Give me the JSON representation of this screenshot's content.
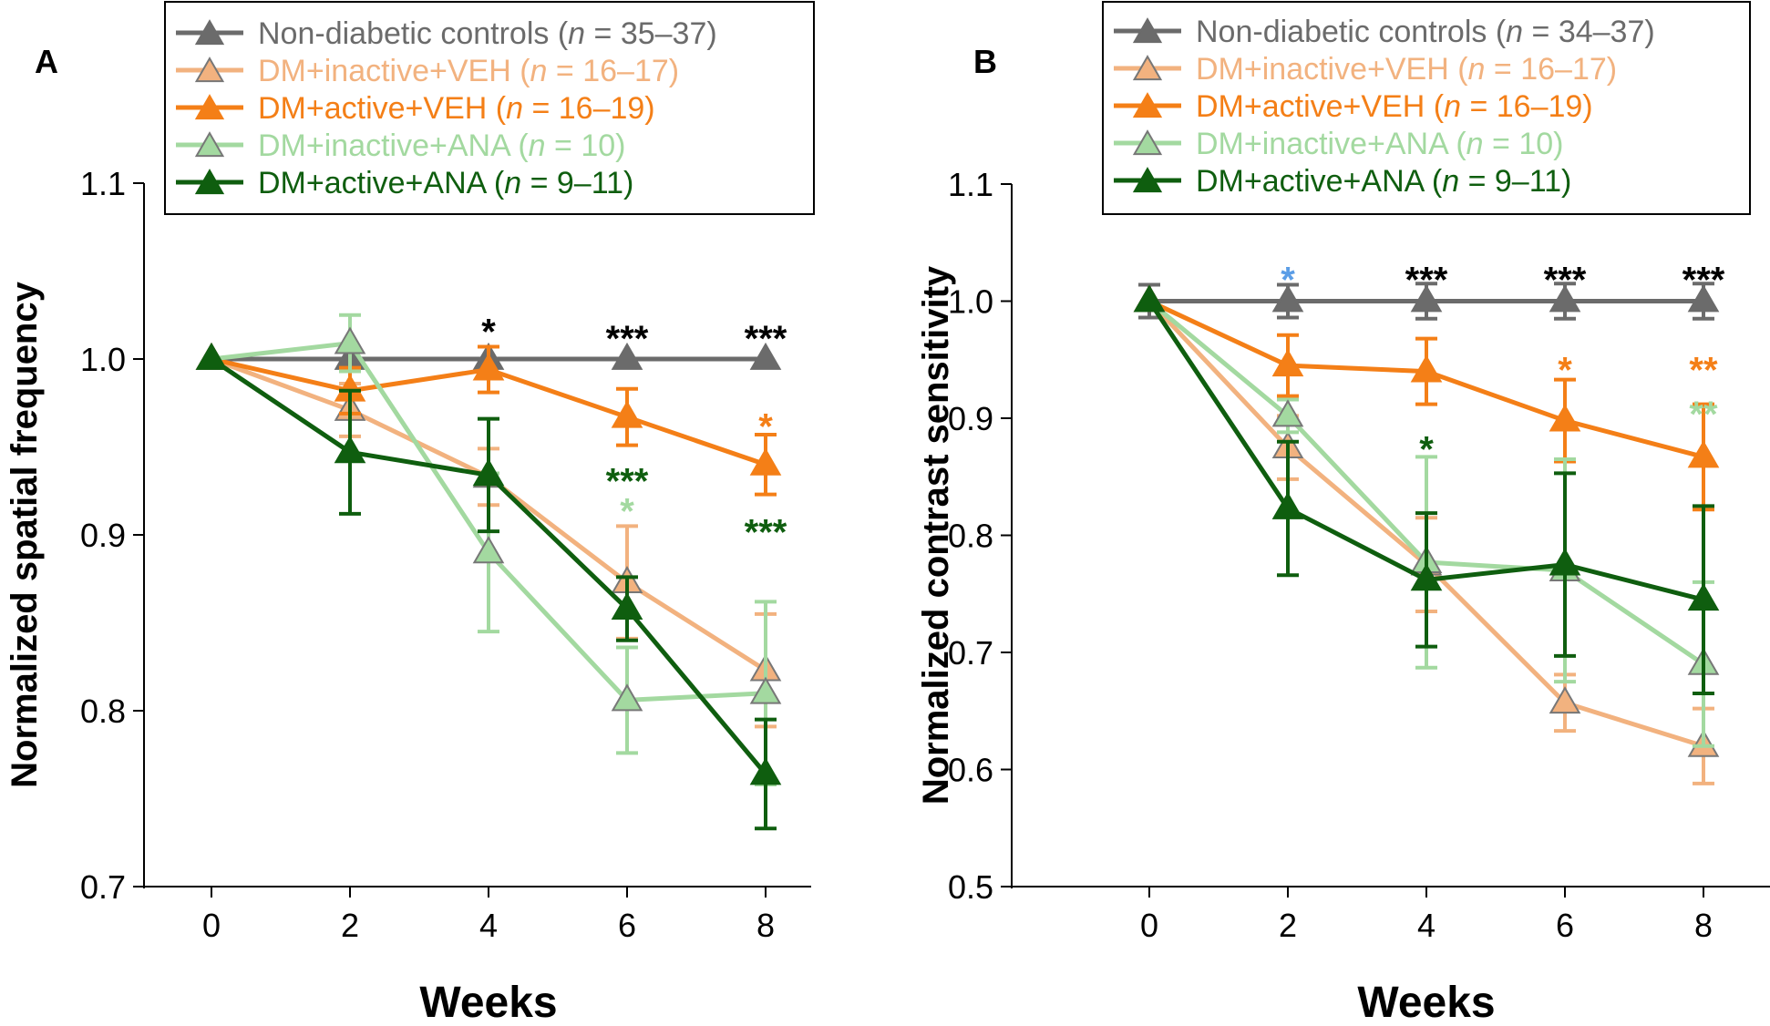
{
  "figure": {
    "series_styles": {
      "Non-diabetic controls": {
        "color": "#6b6b6b",
        "marker": "triangle"
      },
      "DM+inactive+VEH": {
        "color": "#f2b27f",
        "marker": "triangle-open"
      },
      "DM+active+VEH": {
        "color": "#f47f17",
        "marker": "triangle"
      },
      "DM+inactive+ANA": {
        "color": "#a3d9a0",
        "marker": "triangle-open"
      },
      "DM+active+ANA": {
        "color": "#0f5e0f",
        "marker": "triangle"
      }
    }
  },
  "chart_data": [
    {
      "panel": "A",
      "type": "line",
      "xlabel": "Weeks",
      "ylabel": "Normalized spatial  frequency",
      "x": [
        0,
        2,
        4,
        6,
        8
      ],
      "xticks": [
        "0",
        "2",
        "4",
        "6",
        "8"
      ],
      "yticks": [
        "0.7",
        "0.8",
        "0.9",
        "1.0",
        "1.1"
      ],
      "ylim": [
        0.7,
        1.1
      ],
      "legend_position": "top",
      "series": [
        {
          "name": "Non-diabetic controls",
          "n": "35–37",
          "color": "#6b6b6b",
          "values": [
            1.0,
            1.0,
            1.0,
            1.0,
            1.0
          ],
          "err": [
            0,
            0,
            0,
            0,
            0
          ]
        },
        {
          "name": "DM+inactive+VEH",
          "n": "16–17",
          "color": "#f2b27f",
          "values": [
            1.0,
            0.971,
            0.933,
            0.873,
            0.823
          ],
          "err": [
            0,
            0.015,
            0.016,
            0.032,
            0.032
          ]
        },
        {
          "name": "DM+active+VEH",
          "n": "16–19",
          "color": "#f47f17",
          "values": [
            1.0,
            0.982,
            0.994,
            0.967,
            0.94
          ],
          "err": [
            0,
            0.013,
            0.013,
            0.016,
            0.017
          ]
        },
        {
          "name": "DM+inactive+ANA",
          "n": "10",
          "color": "#a3d9a0",
          "values": [
            1.0,
            1.009,
            0.89,
            0.806,
            0.81
          ],
          "err": [
            0,
            0.016,
            0.045,
            0.03,
            0.052
          ]
        },
        {
          "name": "DM+active+ANA",
          "n": "9–11",
          "color": "#0f5e0f",
          "values": [
            1.0,
            0.947,
            0.934,
            0.858,
            0.764
          ],
          "err": [
            0,
            0.035,
            0.032,
            0.018,
            0.031
          ]
        }
      ],
      "annotations": [
        {
          "x": 4,
          "y": 1.02,
          "text": "*",
          "color": "#000000"
        },
        {
          "x": 6,
          "y": 1.016,
          "text": "***",
          "color": "#000000"
        },
        {
          "x": 8,
          "y": 1.016,
          "text": "***",
          "color": "#000000"
        },
        {
          "x": 8,
          "y": 0.966,
          "text": "*",
          "color": "#f47f17"
        },
        {
          "x": 6,
          "y": 0.935,
          "text": "***",
          "color": "#0f5e0f"
        },
        {
          "x": 6,
          "y": 0.918,
          "text": "*",
          "color": "#a3d9a0"
        },
        {
          "x": 8,
          "y": 0.906,
          "text": "***",
          "color": "#0f5e0f"
        }
      ]
    },
    {
      "panel": "B",
      "type": "line",
      "xlabel": "Weeks",
      "ylabel": "Normalized contrast sensitivity",
      "x": [
        0,
        2,
        4,
        6,
        8
      ],
      "xticks": [
        "0",
        "2",
        "4",
        "6",
        "8"
      ],
      "yticks": [
        "0.5",
        "0.6",
        "0.7",
        "0.8",
        "0.9",
        "1.0",
        "1.1"
      ],
      "ylim": [
        0.5,
        1.1
      ],
      "legend_position": "top",
      "series": [
        {
          "name": "Non-diabetic controls",
          "n": "34–37",
          "color": "#6b6b6b",
          "values": [
            1.0,
            1.0,
            1.0,
            1.0,
            1.0
          ],
          "err": [
            0.014,
            0.014,
            0.015,
            0.015,
            0.015
          ]
        },
        {
          "name": "DM+inactive+VEH",
          "n": "16–17",
          "color": "#f2b27f",
          "values": [
            1.0,
            0.875,
            0.775,
            0.657,
            0.62
          ],
          "err": [
            0,
            0.027,
            0.04,
            0.024,
            0.032
          ]
        },
        {
          "name": "DM+active+VEH",
          "n": "16–19",
          "color": "#f47f17",
          "values": [
            1.0,
            0.945,
            0.94,
            0.898,
            0.867
          ],
          "err": [
            0,
            0.026,
            0.028,
            0.035,
            0.045
          ]
        },
        {
          "name": "DM+inactive+ANA",
          "n": "10",
          "color": "#a3d9a0",
          "values": [
            1.0,
            0.902,
            0.777,
            0.77,
            0.69
          ],
          "err": [
            0,
            0.014,
            0.09,
            0.095,
            0.07
          ]
        },
        {
          "name": "DM+active+ANA",
          "n": "9–11",
          "color": "#0f5e0f",
          "values": [
            1.0,
            0.823,
            0.762,
            0.775,
            0.745
          ],
          "err": [
            0,
            0.057,
            0.057,
            0.078,
            0.08
          ]
        }
      ],
      "annotations": [
        {
          "x": 2,
          "y": 1.025,
          "text": "*",
          "color": "#5b9de6"
        },
        {
          "x": 4,
          "y": 1.025,
          "text": "***",
          "color": "#000000"
        },
        {
          "x": 6,
          "y": 1.025,
          "text": "***",
          "color": "#000000"
        },
        {
          "x": 8,
          "y": 1.025,
          "text": "***",
          "color": "#000000"
        },
        {
          "x": 6,
          "y": 0.948,
          "text": "*",
          "color": "#f47f17"
        },
        {
          "x": 8,
          "y": 0.948,
          "text": "**",
          "color": "#f47f17"
        },
        {
          "x": 8,
          "y": 0.91,
          "text": "**",
          "color": "#a3d9a0"
        },
        {
          "x": 4,
          "y": 0.88,
          "text": "*",
          "color": "#0f5e0f"
        }
      ]
    }
  ]
}
